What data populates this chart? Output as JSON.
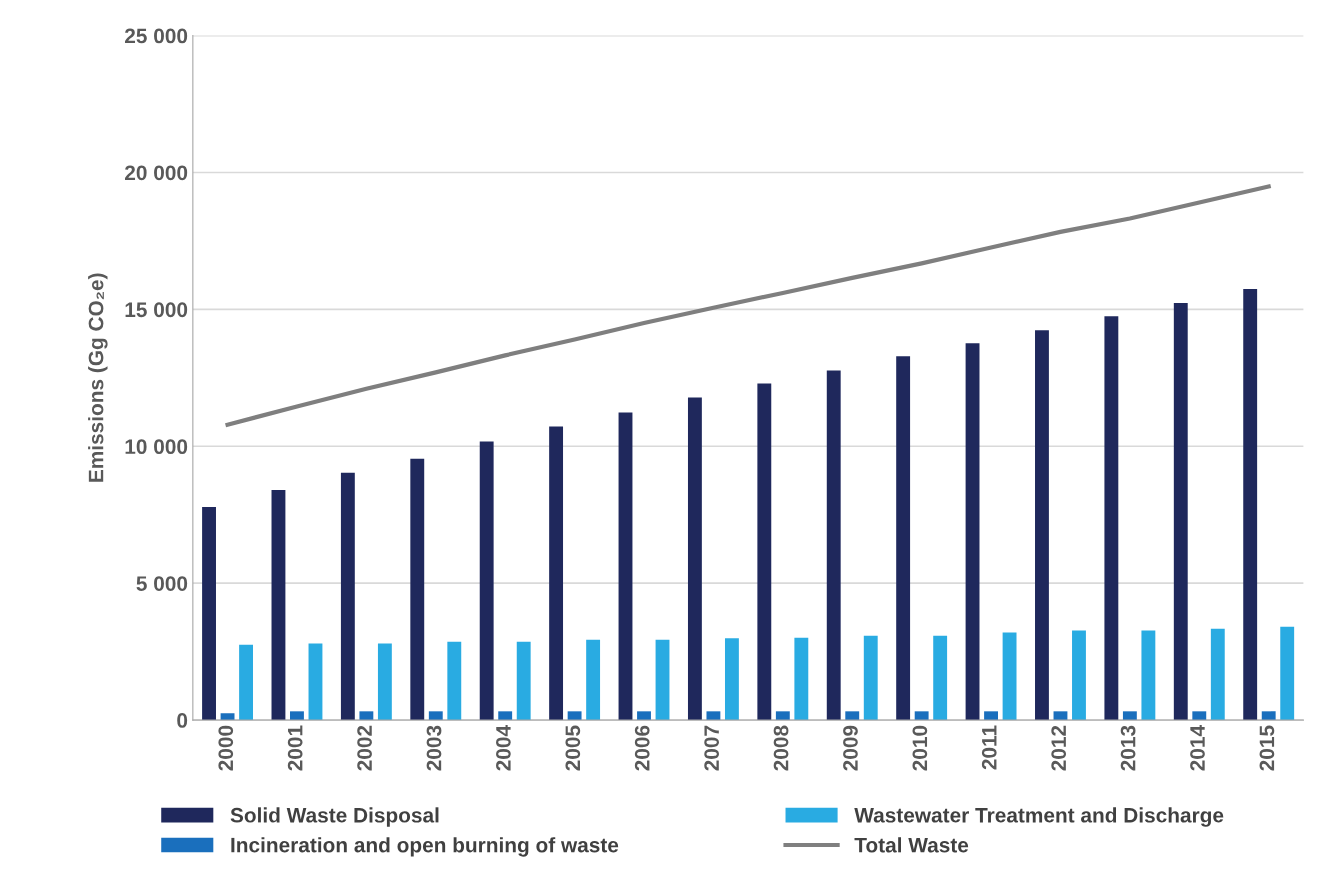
{
  "chart_data": {
    "type": "bar",
    "ylabel": "Emissions (Gg CO₂e)",
    "categories": [
      "2000",
      "2001",
      "2002",
      "2003",
      "2004",
      "2005",
      "2006",
      "2007",
      "2008",
      "2009",
      "2010",
      "2011",
      "2012",
      "2013",
      "2014",
      "2015"
    ],
    "series": [
      {
        "name": "Solid Waste Disposal",
        "color": "#1f285c",
        "values": [
          7780,
          8400,
          9030,
          9540,
          10170,
          10720,
          11230,
          11780,
          12290,
          12770,
          13290,
          13760,
          14240,
          14750,
          15230,
          15740
        ]
      },
      {
        "name": "Incineration and open burning of waste",
        "color": "#1a6fbd",
        "values": [
          250,
          320,
          320,
          320,
          320,
          320,
          320,
          320,
          320,
          320,
          320,
          320,
          320,
          320,
          320,
          320
        ]
      },
      {
        "name": "Wastewater Treatment and Discharge",
        "color": "#29abe2",
        "values": [
          2750,
          2800,
          2800,
          2860,
          2860,
          2930,
          2930,
          2990,
          3010,
          3080,
          3080,
          3200,
          3270,
          3270,
          3340,
          3410
        ]
      },
      {
        "name": "Total Waste",
        "type": "line",
        "color": "#7f7f7f",
        "values": [
          10790,
          11450,
          12100,
          12700,
          13320,
          13900,
          14500,
          15060,
          15600,
          16150,
          16680,
          17260,
          17830,
          18320,
          18900,
          19490
        ]
      }
    ],
    "ylim": [
      0,
      25000
    ],
    "yticks": [
      {
        "value": 0,
        "label": "0"
      },
      {
        "value": 5000,
        "label": "5 000"
      },
      {
        "value": 10000,
        "label": "10 000"
      },
      {
        "value": 15000,
        "label": "15 000"
      },
      {
        "value": 20000,
        "label": "20 000"
      },
      {
        "value": 25000,
        "label": "25 000"
      }
    ],
    "grid": "y",
    "legend": "bottom"
  }
}
